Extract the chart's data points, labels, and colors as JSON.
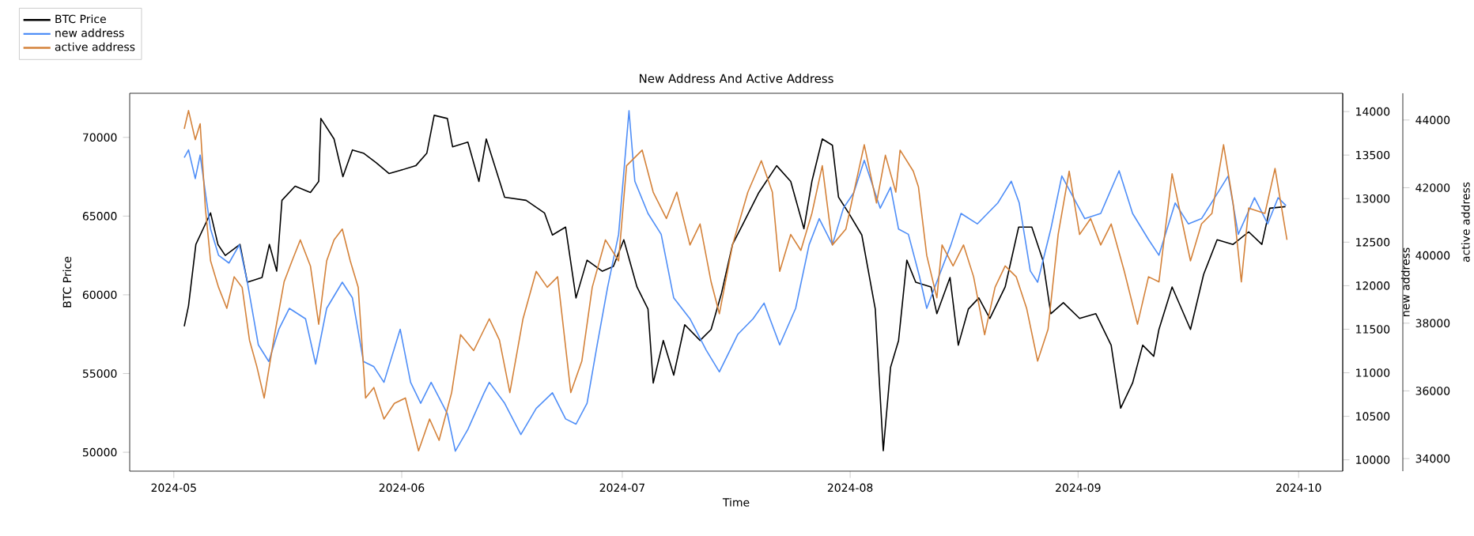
{
  "chart_data": {
    "type": "line",
    "title": "New Address And Active Address",
    "xlabel": "Time",
    "ylabel": "BTC Price",
    "y2label": "new address",
    "y3label": "active address",
    "xlim": [
      "2024-04-25",
      "2024-10-07"
    ],
    "xticks": [
      {
        "value": "2024-05-01",
        "label": "2024-05"
      },
      {
        "value": "2024-06-01",
        "label": "2024-06"
      },
      {
        "value": "2024-07-01",
        "label": "2024-07"
      },
      {
        "value": "2024-08-01",
        "label": "2024-08"
      },
      {
        "value": "2024-09-01",
        "label": "2024-09"
      },
      {
        "value": "2024-10-01",
        "label": "2024-10"
      }
    ],
    "ylim": [
      48800,
      72800
    ],
    "yticks": [
      50000,
      55000,
      60000,
      65000,
      70000
    ],
    "y2lim": [
      9870,
      14210
    ],
    "y2ticks": [
      10000,
      10500,
      11000,
      11500,
      12000,
      12500,
      13000,
      13500,
      14000
    ],
    "y3lim": [
      33630,
      44790
    ],
    "y3ticks": [
      34000,
      36000,
      38000,
      40000,
      42000,
      44000
    ],
    "legend": "top left",
    "marker": "none",
    "line_style": "solid",
    "grid": false,
    "series": [
      {
        "name": "BTC Price",
        "color": "#000000",
        "axis": "y",
        "x": [
          "2024-05-02T10:00",
          "2024-05-03T00:00",
          "2024-05-04T00:00",
          "2024-05-05T00:00",
          "2024-05-06T00:00",
          "2024-05-07T00:00",
          "2024-05-08T00:00",
          "2024-05-10T00:00",
          "2024-05-11T00:00",
          "2024-05-13T00:00",
          "2024-05-14T00:00",
          "2024-05-15T00:00",
          "2024-05-15T17:00",
          "2024-05-17T12:00",
          "2024-05-19T14:00",
          "2024-05-20T17:00",
          "2024-05-21T00:00",
          "2024-05-22T19:00",
          "2024-05-24T00:00",
          "2024-05-25T07:00",
          "2024-05-26T19:00",
          "2024-05-28T12:00",
          "2024-05-30T07:00",
          "2024-05-31T19:00",
          "2024-06-02T22:00",
          "2024-06-04T10:00",
          "2024-06-05T10:00",
          "2024-06-07T05:00",
          "2024-06-07T22:00",
          "2024-06-10T00:00",
          "2024-06-11T12:00",
          "2024-06-12T12:00",
          "2024-06-15T00:00",
          "2024-06-17T22:00",
          "2024-06-20T10:00",
          "2024-06-21T12:00",
          "2024-06-23T07:00",
          "2024-06-24T17:00",
          "2024-06-26T05:00",
          "2024-06-28T07:00",
          "2024-06-29T19:00",
          "2024-07-01T05:00",
          "2024-07-03T00:00",
          "2024-07-04T12:00",
          "2024-07-05T05:00",
          "2024-07-06T14:00",
          "2024-07-08T00:00",
          "2024-07-09T12:00",
          "2024-07-11T14:00",
          "2024-07-13T02:00",
          "2024-07-14T12:00",
          "2024-07-16T00:00",
          "2024-07-17T10:00",
          "2024-07-19T14:00",
          "2024-07-22T00:00",
          "2024-07-23T22:00",
          "2024-07-25T17:00",
          "2024-07-26T19:00",
          "2024-07-28T05:00",
          "2024-07-29T14:00",
          "2024-07-30T10:00",
          "2024-07-31T19:00",
          "2024-08-02T14:00",
          "2024-08-04T10:00",
          "2024-08-05T12:00",
          "2024-08-06T12:00",
          "2024-08-07T14:00",
          "2024-08-08T17:00",
          "2024-08-09T22:00",
          "2024-08-12T00:00",
          "2024-08-12T19:00",
          "2024-08-14T14:00",
          "2024-08-15T17:00",
          "2024-08-17T02:00",
          "2024-08-18T12:00",
          "2024-08-20T00:00",
          "2024-08-22T02:00",
          "2024-08-23T22:00",
          "2024-08-25T17:00",
          "2024-08-27T05:00",
          "2024-08-28T07:00",
          "2024-08-30T00:00",
          "2024-09-01T05:00",
          "2024-09-03T10:00",
          "2024-09-05T12:00",
          "2024-09-06T19:00",
          "2024-09-08T10:00",
          "2024-09-09T19:00",
          "2024-09-11T07:00",
          "2024-09-12T00:00",
          "2024-09-13T19:00",
          "2024-09-16T07:00",
          "2024-09-18T02:00",
          "2024-09-19T22:00",
          "2024-09-22T02:00",
          "2024-09-24T05:00",
          "2024-09-26T00:00",
          "2024-09-27T02:00",
          "2024-09-29T05:00"
        ],
        "values": [
          58000,
          59300,
          63200,
          64200,
          65200,
          63200,
          62500,
          63200,
          60800,
          61100,
          63200,
          61500,
          66000,
          66900,
          66500,
          67200,
          71200,
          69900,
          67500,
          69200,
          69000,
          68400,
          67700,
          67900,
          68200,
          69000,
          71400,
          71200,
          69400,
          69700,
          67200,
          69900,
          66200,
          66000,
          65200,
          63800,
          64300,
          59800,
          62200,
          61500,
          61800,
          63500,
          60500,
          59100,
          54400,
          57100,
          54900,
          58100,
          57100,
          57800,
          60100,
          63200,
          64500,
          66500,
          68200,
          67200,
          64200,
          67200,
          69900,
          69500,
          66200,
          65200,
          63800,
          59100,
          50100,
          55400,
          57100,
          62200,
          60800,
          60500,
          58800,
          61100,
          56800,
          59100,
          59800,
          58500,
          60500,
          64300,
          64300,
          62200,
          58800,
          59500,
          58500,
          58800,
          56800,
          52800,
          54400,
          56800,
          56100,
          57800,
          60500,
          57800,
          61300,
          63500,
          63200,
          64000,
          63200,
          65500,
          65600
        ]
      },
      {
        "name": "new address",
        "color": "#4f8ef7",
        "axis": "y2",
        "x": [
          "2024-05-02T10:00",
          "2024-05-03T00:00",
          "2024-05-03T22:00",
          "2024-05-04T14:00",
          "2024-05-05T07:00",
          "2024-05-06T00:00",
          "2024-05-07T02:00",
          "2024-05-08T12:00",
          "2024-05-09T22:00",
          "2024-05-11T00:00",
          "2024-05-12T12:00",
          "2024-05-13T22:00",
          "2024-05-15T07:00",
          "2024-05-16T17:00",
          "2024-05-18T22:00",
          "2024-05-20T07:00",
          "2024-05-21T19:00",
          "2024-05-23T22:00",
          "2024-05-25T07:00",
          "2024-05-26T19:00",
          "2024-05-28T05:00",
          "2024-05-29T14:00",
          "2024-05-31T19:00",
          "2024-06-02T05:00",
          "2024-06-03T14:00",
          "2024-06-05T00:00",
          "2024-06-07T05:00",
          "2024-06-08T07:00",
          "2024-06-10T00:00",
          "2024-06-12T05:00",
          "2024-06-12T22:00",
          "2024-06-15T00:00",
          "2024-06-17T05:00",
          "2024-06-19T07:00",
          "2024-06-21T12:00",
          "2024-06-23T07:00",
          "2024-06-24T17:00",
          "2024-06-26T05:00",
          "2024-06-27T14:00",
          "2024-06-29T00:00",
          "2024-06-30T12:00",
          "2024-07-01T22:00",
          "2024-07-02T17:00",
          "2024-07-04T12:00",
          "2024-07-06T07:00",
          "2024-07-08T00:00",
          "2024-07-10T05:00",
          "2024-07-12T10:00",
          "2024-07-14T05:00",
          "2024-07-16T17:00",
          "2024-07-18T19:00",
          "2024-07-20T07:00",
          "2024-07-22T10:00",
          "2024-07-24T14:00",
          "2024-07-26T10:00",
          "2024-07-27T19:00",
          "2024-07-29T14:00",
          "2024-07-31T02:00",
          "2024-08-01T12:00",
          "2024-08-02T22:00",
          "2024-08-05T02:00",
          "2024-08-06T12:00",
          "2024-08-07T14:00",
          "2024-08-08T22:00",
          "2024-08-10T10:00",
          "2024-08-11T10:00",
          "2024-08-12T12:00",
          "2024-08-14T17:00",
          "2024-08-16T02:00",
          "2024-08-18T07:00",
          "2024-08-21T02:00",
          "2024-08-22T22:00",
          "2024-08-24T00:00",
          "2024-08-25T12:00",
          "2024-08-26T12:00",
          "2024-08-28T07:00",
          "2024-08-29T19:00",
          "2024-09-01T22:00",
          "2024-09-04T02:00",
          "2024-09-06T14:00",
          "2024-09-08T10:00",
          "2024-09-10T14:00",
          "2024-09-12T00:00",
          "2024-09-14T05:00",
          "2024-09-16T00:00",
          "2024-09-17T19:00",
          "2024-09-19T14:00",
          "2024-09-21T10:00",
          "2024-09-22T19:00",
          "2024-09-25T00:00",
          "2024-09-26T19:00",
          "2024-09-28T05:00",
          "2024-09-29T07:00"
        ],
        "values": [
          13470,
          13560,
          13230,
          13500,
          13070,
          12650,
          12350,
          12260,
          12470,
          12040,
          11320,
          11130,
          11500,
          11740,
          11620,
          11100,
          11740,
          12040,
          11860,
          11130,
          11070,
          10890,
          11500,
          10890,
          10650,
          10890,
          10530,
          10100,
          10350,
          10770,
          10890,
          10650,
          10290,
          10590,
          10770,
          10470,
          10410,
          10650,
          11320,
          11980,
          12590,
          14010,
          13200,
          12830,
          12590,
          11860,
          11620,
          11260,
          11010,
          11440,
          11620,
          11800,
          11320,
          11740,
          12470,
          12770,
          12470,
          12890,
          13070,
          13440,
          12890,
          13130,
          12650,
          12590,
          12110,
          11740,
          11980,
          12470,
          12830,
          12710,
          12950,
          13200,
          12950,
          12170,
          12040,
          12650,
          13260,
          12770,
          12830,
          13320,
          12830,
          12530,
          12350,
          12950,
          12710,
          12770,
          13010,
          13260,
          12590,
          13010,
          12710,
          13010,
          12920
        ]
      },
      {
        "name": "active address",
        "color": "#d4823a",
        "axis": "y3",
        "x": [
          "2024-05-02T10:00",
          "2024-05-03T00:00",
          "2024-05-03T22:00",
          "2024-05-04T14:00",
          "2024-05-05T07:00",
          "2024-05-06T00:00",
          "2024-05-07T02:00",
          "2024-05-08T05:00",
          "2024-05-09T05:00",
          "2024-05-10T07:00",
          "2024-05-11T07:00",
          "2024-05-12T07:00",
          "2024-05-13T07:00",
          "2024-05-14T14:00",
          "2024-05-16T00:00",
          "2024-05-17T02:00",
          "2024-05-18T05:00",
          "2024-05-19T14:00",
          "2024-05-20T17:00",
          "2024-05-21T19:00",
          "2024-05-22T19:00",
          "2024-05-23T22:00",
          "2024-05-25T00:00",
          "2024-05-26T02:00",
          "2024-05-27T02:00",
          "2024-05-28T05:00",
          "2024-05-29T14:00",
          "2024-05-31T00:00",
          "2024-06-01T12:00",
          "2024-06-03T07:00",
          "2024-06-04T19:00",
          "2024-06-06T02:00",
          "2024-06-07T19:00",
          "2024-06-09T00:00",
          "2024-06-10T19:00",
          "2024-06-12T22:00",
          "2024-06-14T07:00",
          "2024-06-15T17:00",
          "2024-06-17T12:00",
          "2024-06-19T07:00",
          "2024-06-20T19:00",
          "2024-06-22T05:00",
          "2024-06-24T00:00",
          "2024-06-25T12:00",
          "2024-06-26T22:00",
          "2024-06-28T17:00",
          "2024-06-30T12:00",
          "2024-07-01T14:00",
          "2024-07-03T17:00",
          "2024-07-05T05:00",
          "2024-07-07T00:00",
          "2024-07-08T10:00",
          "2024-07-10T05:00",
          "2024-07-11T14:00",
          "2024-07-13T02:00",
          "2024-07-14T05:00",
          "2024-07-16T00:00",
          "2024-07-18T02:00",
          "2024-07-19T22:00",
          "2024-07-21T10:00",
          "2024-07-22T10:00",
          "2024-07-23T22:00",
          "2024-07-25T07:00",
          "2024-07-26T19:00",
          "2024-07-28T05:00",
          "2024-07-29T14:00",
          "2024-07-31T10:00",
          "2024-08-01T12:00",
          "2024-08-02T22:00",
          "2024-08-04T14:00",
          "2024-08-05T19:00",
          "2024-08-07T05:00",
          "2024-08-07T19:00",
          "2024-08-09T14:00",
          "2024-08-10T07:00",
          "2024-08-11T10:00",
          "2024-08-12T19:00",
          "2024-08-13T12:00",
          "2024-08-15T00:00",
          "2024-08-16T10:00",
          "2024-08-17T19:00",
          "2024-08-19T07:00",
          "2024-08-20T17:00",
          "2024-08-22T02:00",
          "2024-08-23T14:00",
          "2024-08-25T00:00",
          "2024-08-26T12:00",
          "2024-08-27T22:00",
          "2024-08-29T07:00",
          "2024-08-30T19:00",
          "2024-09-01T05:00",
          "2024-09-02T17:00",
          "2024-09-04T02:00",
          "2024-09-05T12:00",
          "2024-09-07T07:00",
          "2024-09-09T02:00",
          "2024-09-10T14:00",
          "2024-09-12T00:00",
          "2024-09-13T19:00",
          "2024-09-14T22:00",
          "2024-09-16T07:00",
          "2024-09-17T19:00",
          "2024-09-19T05:00",
          "2024-09-20T19:00",
          "2024-09-22T02:00",
          "2024-09-23T05:00",
          "2024-09-24T05:00",
          "2024-09-26T10:00",
          "2024-09-27T19:00",
          "2024-09-29T10:00"
        ],
        "values": [
          43740,
          44280,
          43420,
          43890,
          41400,
          39840,
          39060,
          38440,
          39370,
          39060,
          37500,
          36720,
          35790,
          37500,
          39220,
          39840,
          40460,
          39690,
          37970,
          39840,
          40460,
          40780,
          39840,
          39060,
          35790,
          36100,
          35170,
          35630,
          35790,
          34230,
          35170,
          34540,
          35950,
          37660,
          37190,
          38130,
          37500,
          35950,
          38130,
          39530,
          39060,
          39370,
          35950,
          36880,
          39060,
          40460,
          39840,
          42650,
          43110,
          41870,
          41090,
          41870,
          40310,
          40930,
          39220,
          38280,
          40310,
          41870,
          42800,
          41870,
          39530,
          40620,
          40150,
          41240,
          42650,
          40310,
          40780,
          41870,
          43270,
          41550,
          42960,
          41870,
          43110,
          42490,
          42020,
          40000,
          38750,
          40310,
          39690,
          40310,
          39370,
          37660,
          39060,
          39690,
          39370,
          38440,
          36880,
          37820,
          40620,
          42490,
          40620,
          41090,
          40310,
          40930,
          39530,
          37970,
          39370,
          39220,
          42410,
          41240,
          39840,
          40930,
          41240,
          43270,
          41550,
          39220,
          41400,
          41240,
          42570,
          40460
        ]
      }
    ]
  }
}
